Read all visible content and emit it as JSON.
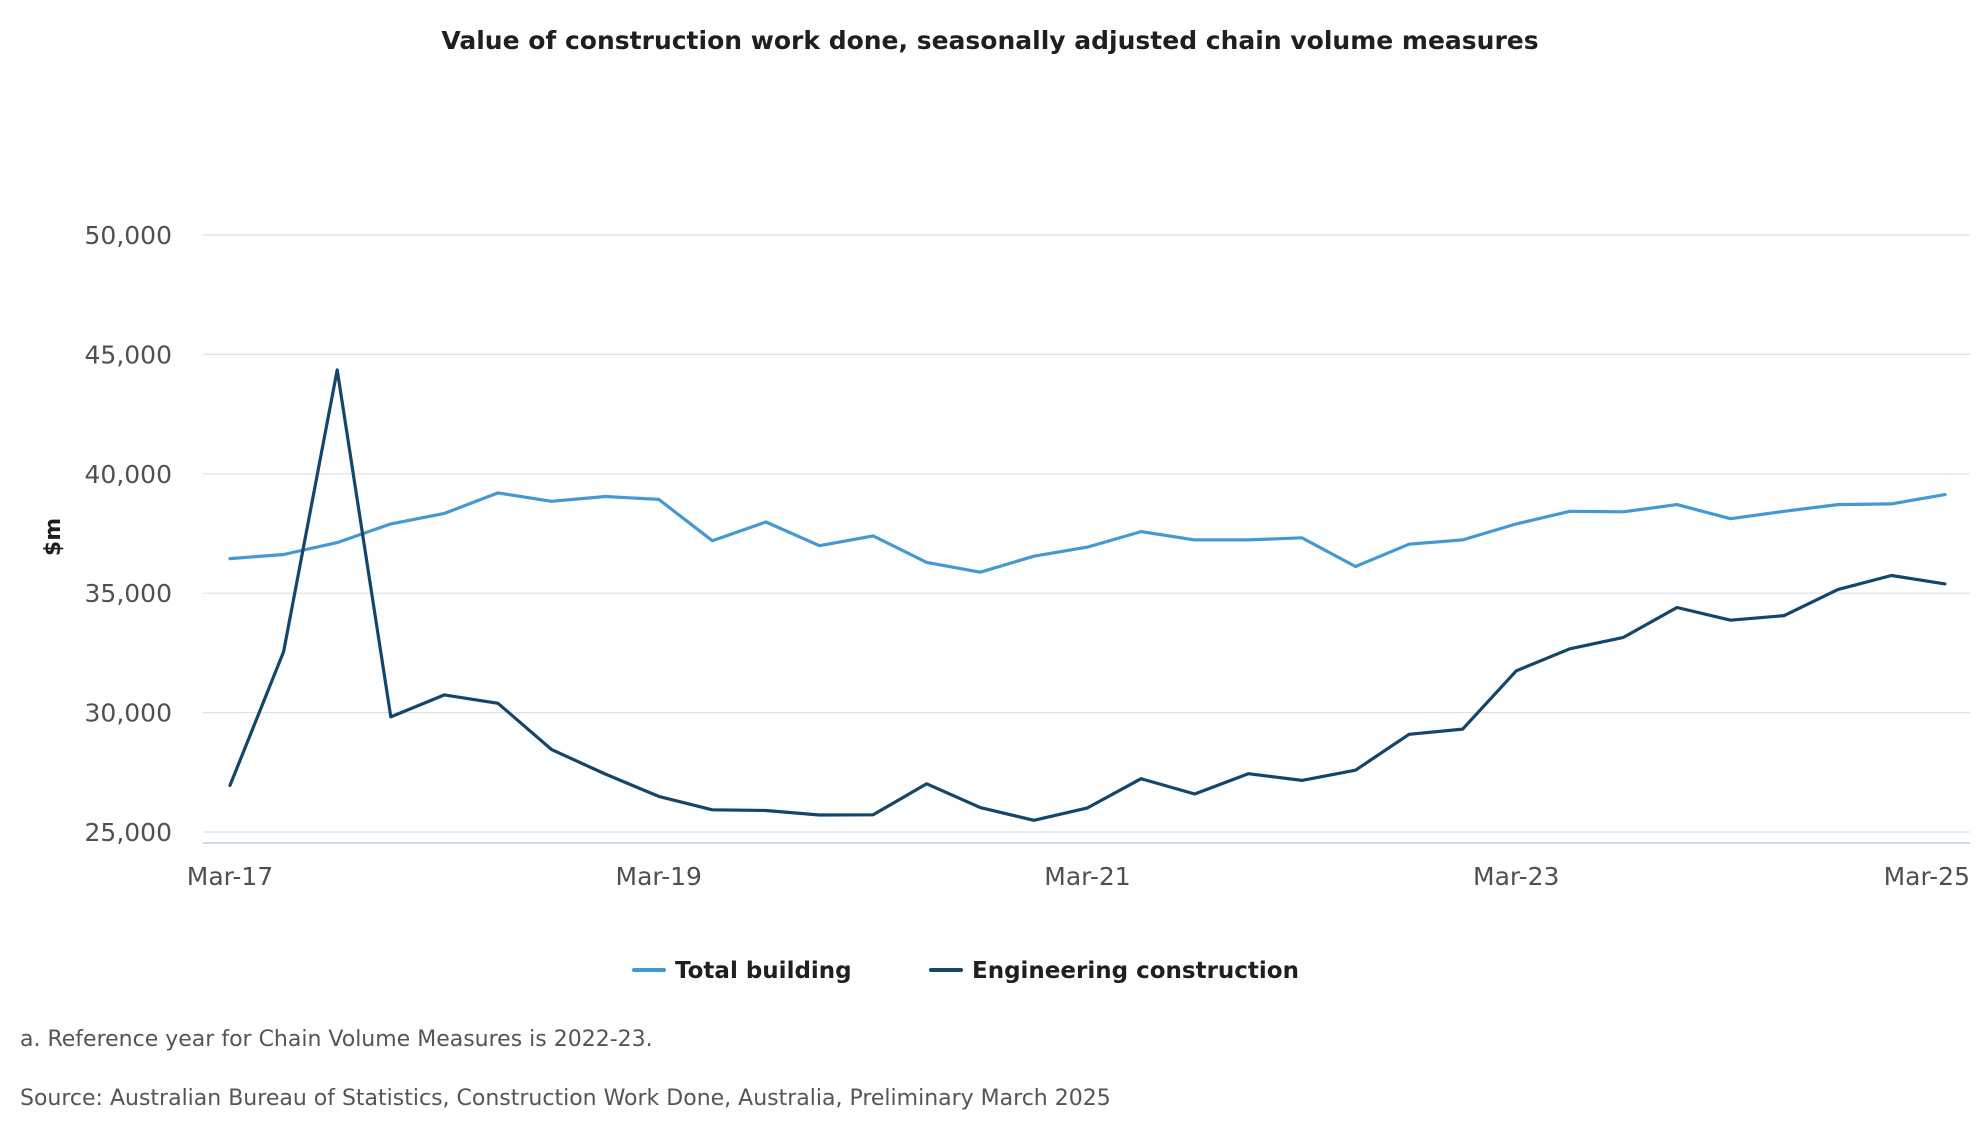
{
  "chart_data": {
    "type": "line",
    "title": "Value of construction work done, seasonally adjusted chain volume measures",
    "xlabel": "",
    "ylabel": "$m",
    "ylim": [
      25000,
      50000
    ],
    "yticks": [
      25000,
      30000,
      35000,
      40000,
      45000,
      50000
    ],
    "ytick_labels": [
      "25,000",
      "30,000",
      "35,000",
      "40,000",
      "45,000",
      "50,000"
    ],
    "x": [
      "Mar-17",
      "Jun-17",
      "Sep-17",
      "Dec-17",
      "Mar-18",
      "Jun-18",
      "Sep-18",
      "Dec-18",
      "Mar-19",
      "Jun-19",
      "Sep-19",
      "Dec-19",
      "Mar-20",
      "Jun-20",
      "Sep-20",
      "Dec-20",
      "Mar-21",
      "Jun-21",
      "Sep-21",
      "Dec-21",
      "Mar-22",
      "Jun-22",
      "Sep-22",
      "Dec-22",
      "Mar-23",
      "Jun-23",
      "Sep-23",
      "Dec-23",
      "Mar-24",
      "Jun-24",
      "Sep-24",
      "Dec-24",
      "Mar-25"
    ],
    "xtick_labels": [
      "Mar-17",
      "Mar-19",
      "Mar-21",
      "Mar-23",
      "Mar-25"
    ],
    "xtick_positions": [
      0,
      8,
      16,
      24,
      32
    ],
    "grid": true,
    "legend_position": "bottom-center",
    "series": [
      {
        "name": "Total building",
        "color": "#4599d3",
        "values": [
          36450,
          36620,
          37120,
          37900,
          38340,
          39200,
          38850,
          39050,
          38930,
          37200,
          37980,
          36990,
          37400,
          36290,
          35880,
          36550,
          36930,
          37580,
          37230,
          37230,
          37320,
          36120,
          37050,
          37230,
          37900,
          38430,
          38410,
          38710,
          38120,
          38430,
          38710,
          38740,
          39130
        ]
      },
      {
        "name": "Engineering construction",
        "color": "#14456b",
        "values": [
          26950,
          32550,
          44350,
          29820,
          30740,
          30390,
          28450,
          27430,
          26490,
          25930,
          25900,
          25710,
          25720,
          27020,
          26020,
          25490,
          26010,
          27230,
          26590,
          27440,
          27160,
          27590,
          29090,
          29310,
          31750,
          32670,
          33150,
          34400,
          33870,
          34060,
          35150,
          35740,
          35390
        ]
      }
    ]
  },
  "footnote": "a. Reference year for Chain Volume Measures is 2022-23.",
  "source": "Source: Australian Bureau of Statistics, Construction Work Done, Australia, Preliminary March 2025"
}
